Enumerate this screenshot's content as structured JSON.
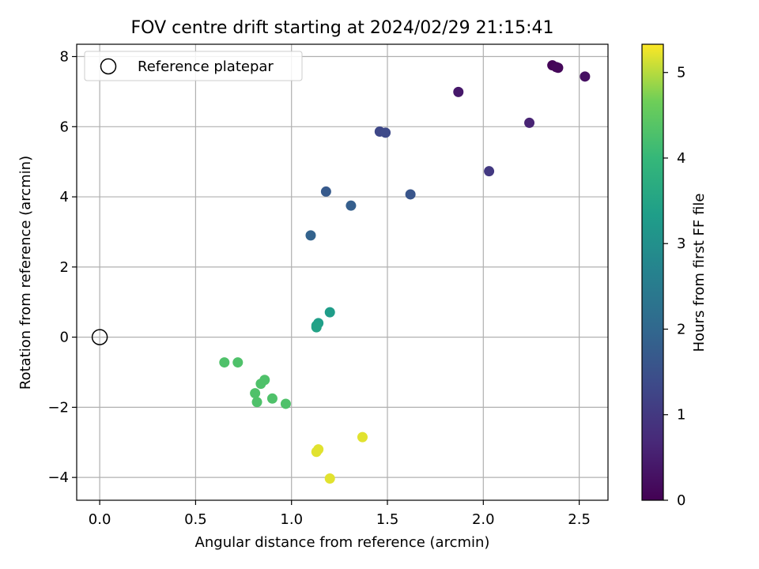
{
  "chart_data": {
    "type": "scatter",
    "title": "FOV centre drift starting at 2024/02/29 21:15:41",
    "xlabel": "Angular distance from reference (arcmin)",
    "ylabel": "Rotation from reference (arcmin)",
    "xlim": [
      -0.12,
      2.65
    ],
    "ylim": [
      -4.65,
      8.35
    ],
    "xticks": [
      0.0,
      0.5,
      1.0,
      1.5,
      2.0,
      2.5
    ],
    "xtick_labels": [
      "0.0",
      "0.5",
      "1.0",
      "1.5",
      "2.0",
      "2.5"
    ],
    "yticks": [
      -4,
      -2,
      0,
      2,
      4,
      6,
      8
    ],
    "ytick_labels": [
      "−4",
      "−2",
      "0",
      "2",
      "4",
      "6",
      "8"
    ],
    "grid": true,
    "legend": {
      "position": "top-left",
      "label": "Reference platepar"
    },
    "reference_point": {
      "x": 0.0,
      "y": 0.0
    },
    "colorbar": {
      "label": "Hours from first FF file",
      "range": [
        0,
        5.33
      ],
      "ticks": [
        0,
        1,
        2,
        3,
        4,
        5
      ],
      "tick_labels": [
        "0",
        "1",
        "2",
        "3",
        "4",
        "5"
      ],
      "colormap": "viridis"
    },
    "points": [
      {
        "x": 2.36,
        "y": 7.75,
        "t": 0.05
      },
      {
        "x": 2.38,
        "y": 7.7,
        "t": 0.1
      },
      {
        "x": 2.39,
        "y": 7.68,
        "t": 0.12
      },
      {
        "x": 2.53,
        "y": 7.43,
        "t": 0.25
      },
      {
        "x": 1.87,
        "y": 6.99,
        "t": 0.4
      },
      {
        "x": 2.24,
        "y": 6.11,
        "t": 0.6
      },
      {
        "x": 2.03,
        "y": 4.73,
        "t": 1.0
      },
      {
        "x": 1.46,
        "y": 5.86,
        "t": 1.3
      },
      {
        "x": 1.49,
        "y": 5.83,
        "t": 1.35
      },
      {
        "x": 1.62,
        "y": 4.07,
        "t": 1.6
      },
      {
        "x": 1.18,
        "y": 4.15,
        "t": 1.7
      },
      {
        "x": 1.31,
        "y": 3.75,
        "t": 1.8
      },
      {
        "x": 1.1,
        "y": 2.9,
        "t": 1.9
      },
      {
        "x": 1.2,
        "y": 0.71,
        "t": 3.3
      },
      {
        "x": 1.14,
        "y": 0.4,
        "t": 3.35
      },
      {
        "x": 1.13,
        "y": 0.33,
        "t": 3.4
      },
      {
        "x": 1.13,
        "y": 0.28,
        "t": 3.45
      },
      {
        "x": 0.65,
        "y": -0.72,
        "t": 4.3
      },
      {
        "x": 0.72,
        "y": -0.72,
        "t": 4.3
      },
      {
        "x": 0.86,
        "y": -1.22,
        "t": 4.3
      },
      {
        "x": 0.84,
        "y": -1.33,
        "t": 4.3
      },
      {
        "x": 0.81,
        "y": -1.6,
        "t": 4.3
      },
      {
        "x": 0.82,
        "y": -1.85,
        "t": 4.3
      },
      {
        "x": 0.9,
        "y": -1.75,
        "t": 4.3
      },
      {
        "x": 0.97,
        "y": -1.9,
        "t": 4.3
      },
      {
        "x": 1.37,
        "y": -2.85,
        "t": 5.2
      },
      {
        "x": 1.14,
        "y": -3.2,
        "t": 5.2
      },
      {
        "x": 1.13,
        "y": -3.27,
        "t": 5.2
      },
      {
        "x": 1.2,
        "y": -4.03,
        "t": 5.2
      }
    ]
  }
}
